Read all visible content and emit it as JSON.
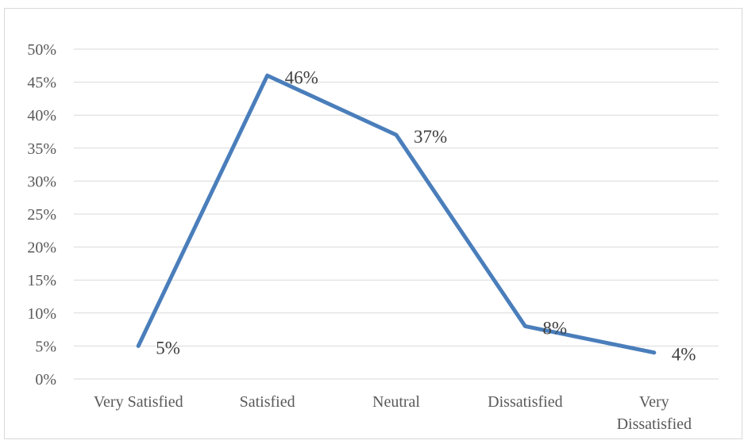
{
  "chart_data": {
    "type": "line",
    "categories": [
      [
        "Very Satisfied"
      ],
      [
        "Satisfied"
      ],
      [
        "Neutral"
      ],
      [
        "Dissatisfied"
      ],
      [
        "Very",
        "Dissatisfied"
      ]
    ],
    "series": [
      {
        "values": [
          5,
          46,
          37,
          8,
          4
        ],
        "labels": [
          "5%",
          "46%",
          "37%",
          "8%",
          "4%"
        ]
      }
    ],
    "y_ticks": [
      "0%",
      "5%",
      "10%",
      "15%",
      "20%",
      "25%",
      "30%",
      "35%",
      "40%",
      "45%",
      "50%"
    ],
    "ylim": [
      0,
      50
    ],
    "y_unit": "%",
    "grid": true,
    "legend": "none",
    "line_color": "#4a7ebb",
    "grid_color": "#d9d9d9"
  }
}
